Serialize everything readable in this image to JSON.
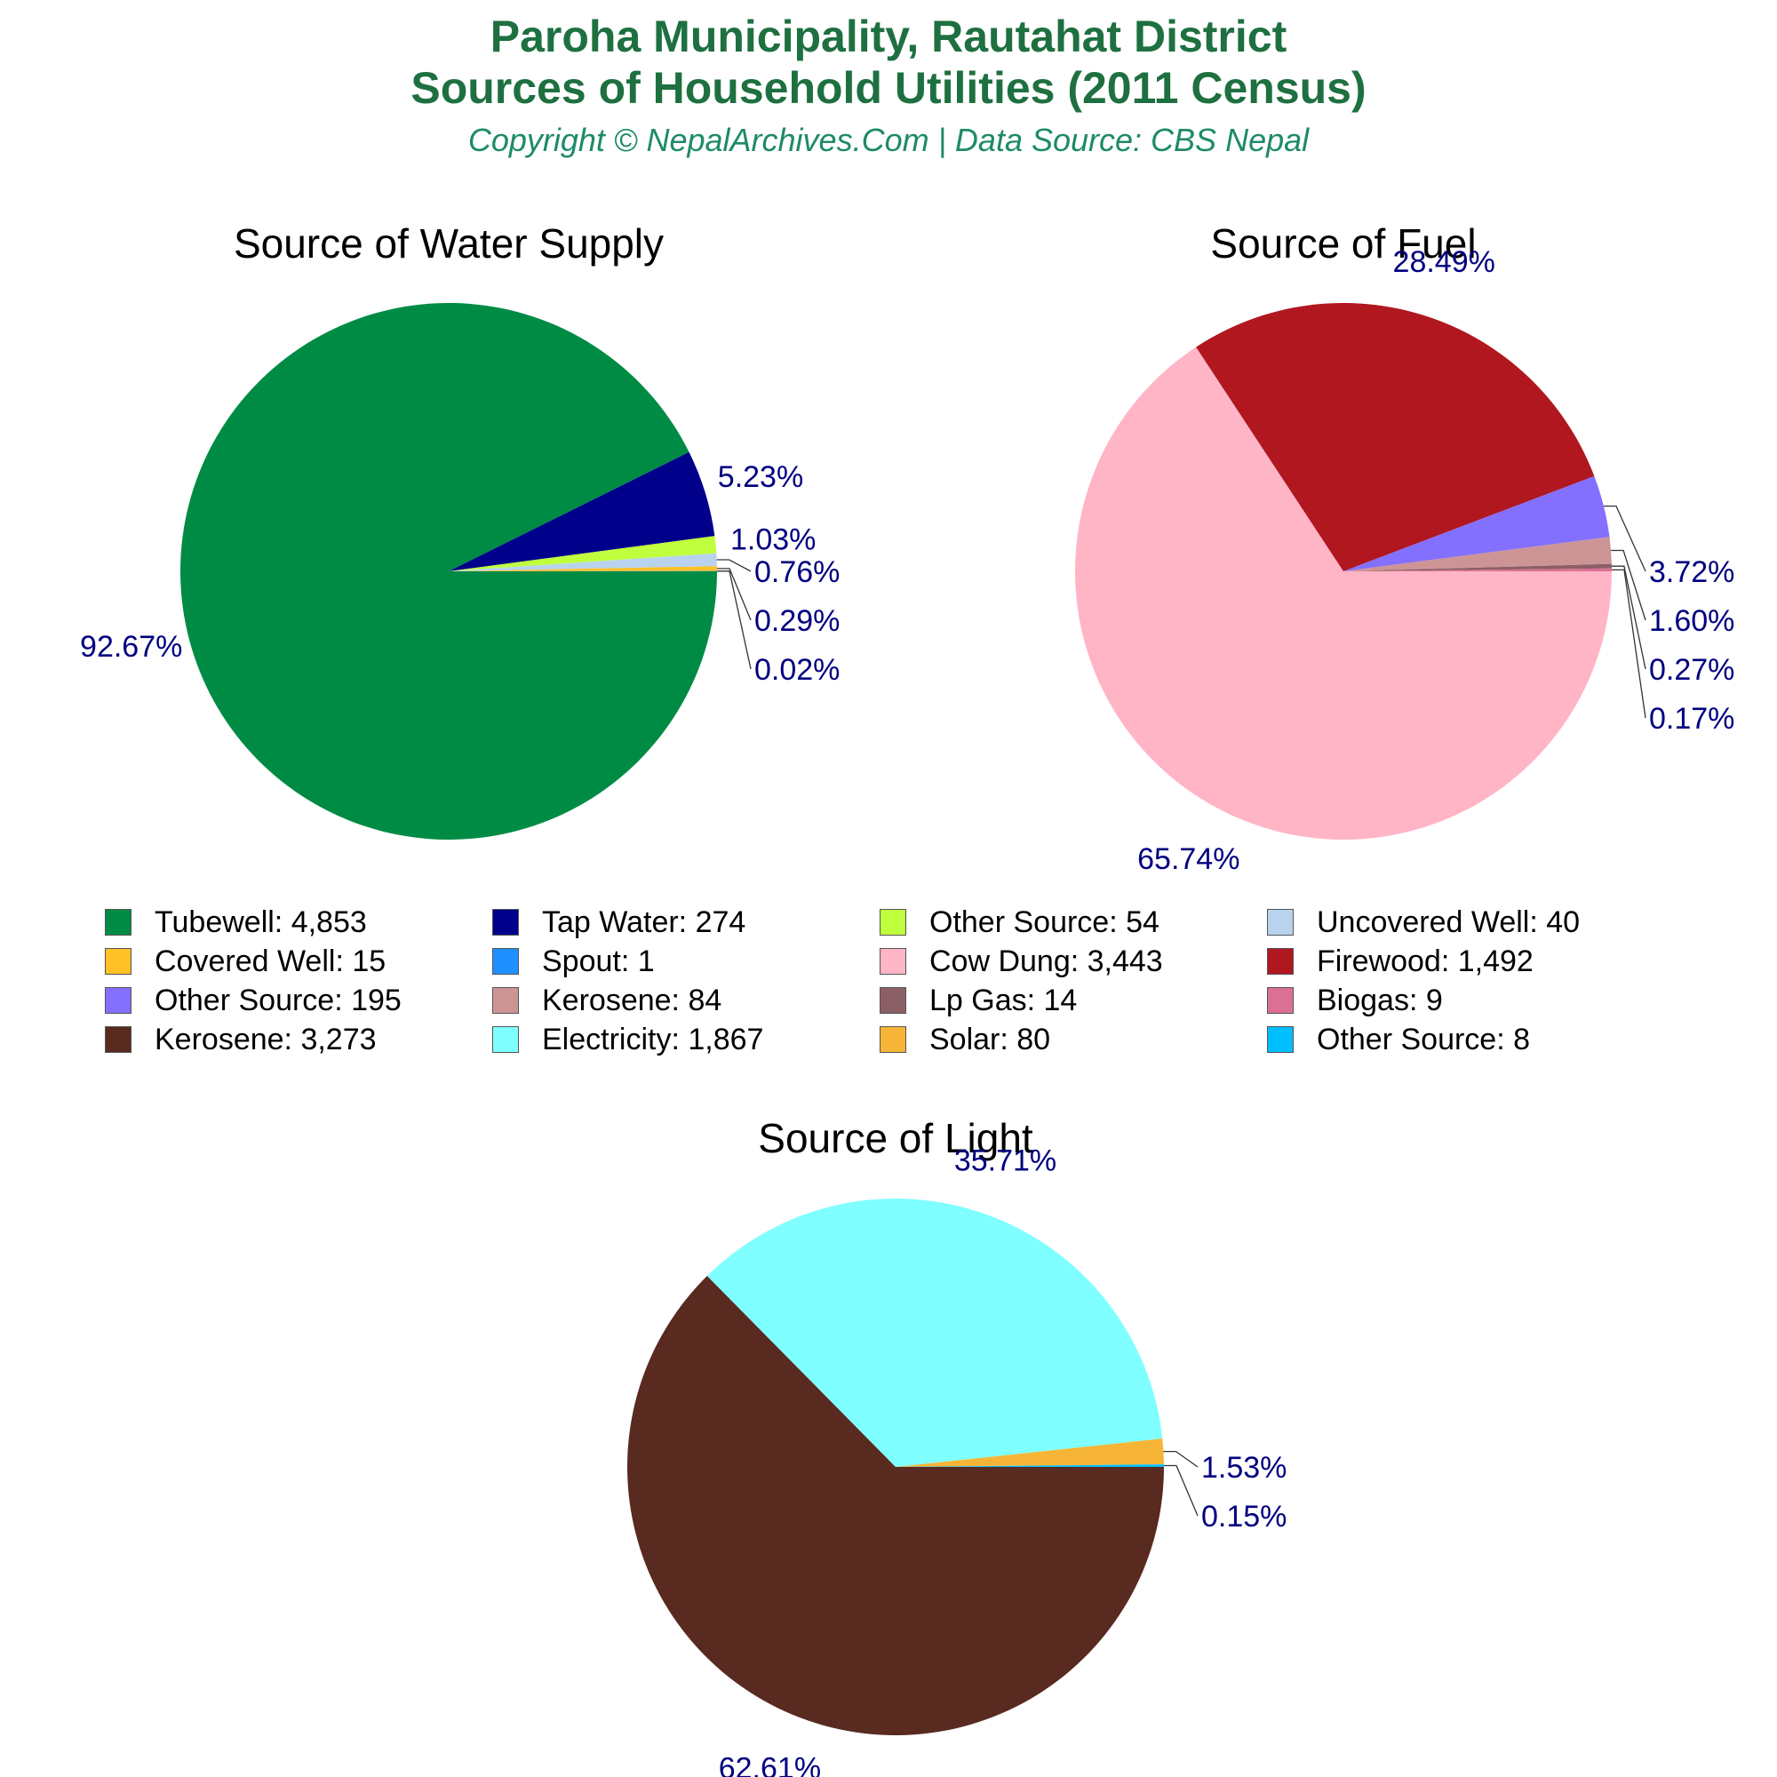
{
  "header": {
    "title_line1": "Paroha Municipality, Rautahat District",
    "title_line2": "Sources of Household Utilities (2011 Census)",
    "subtitle": "Copyright © NepalArchives.Com | Data Source: CBS Nepal"
  },
  "colors": {
    "title": "#1e7040",
    "subtitle": "#1e8a6a",
    "pct_label": "#000080"
  },
  "chart_data": [
    {
      "type": "pie",
      "title": "Source of Water Supply",
      "slices": [
        {
          "label": "Tubewell",
          "value": 4853,
          "pct": "92.67%",
          "color": "#008b45"
        },
        {
          "label": "Tap Water",
          "value": 274,
          "pct": "5.23%",
          "color": "#00008b"
        },
        {
          "label": "Other Source",
          "value": 54,
          "pct": "1.03%",
          "color": "#c0ff3e"
        },
        {
          "label": "Uncovered Well",
          "value": 40,
          "pct": "0.76%",
          "color": "#b9d3ee"
        },
        {
          "label": "Covered Well",
          "value": 15,
          "pct": "0.29%",
          "color": "#ffc125"
        },
        {
          "label": "Spout",
          "value": 1,
          "pct": "0.02%",
          "color": "#1e90ff"
        }
      ]
    },
    {
      "type": "pie",
      "title": "Source of Fuel",
      "slices": [
        {
          "label": "Cow Dung",
          "value": 3443,
          "pct": "65.74%",
          "color": "#ffb5c5"
        },
        {
          "label": "Firewood",
          "value": 1492,
          "pct": "28.49%",
          "color": "#b0171f"
        },
        {
          "label": "Other Source",
          "value": 195,
          "pct": "3.72%",
          "color": "#8470ff"
        },
        {
          "label": "Kerosene",
          "value": 84,
          "pct": "1.60%",
          "color": "#cd9496"
        },
        {
          "label": "Lp Gas",
          "value": 14,
          "pct": "0.27%",
          "color": "#8b5f65"
        },
        {
          "label": "Biogas",
          "value": 9,
          "pct": "0.17%",
          "color": "#db7093"
        }
      ]
    },
    {
      "type": "pie",
      "title": "Source of Light",
      "slices": [
        {
          "label": "Kerosene",
          "value": 3273,
          "pct": "62.61%",
          "color": "#582a20"
        },
        {
          "label": "Electricity",
          "value": 1867,
          "pct": "35.71%",
          "color": "#7fffff"
        },
        {
          "label": "Solar",
          "value": 80,
          "pct": "1.53%",
          "color": "#f7b538"
        },
        {
          "label": "Other Source",
          "value": 8,
          "pct": "0.15%",
          "color": "#00bfff"
        }
      ]
    }
  ],
  "legend": [
    {
      "text": "Tubewell: 4,853",
      "color": "#008b45"
    },
    {
      "text": "Tap Water: 274",
      "color": "#00008b"
    },
    {
      "text": "Other Source: 54",
      "color": "#c0ff3e"
    },
    {
      "text": "Uncovered Well: 40",
      "color": "#b9d3ee"
    },
    {
      "text": "Covered Well: 15",
      "color": "#ffc125"
    },
    {
      "text": "Spout: 1",
      "color": "#1e90ff"
    },
    {
      "text": "Cow Dung: 3,443",
      "color": "#ffb5c5"
    },
    {
      "text": "Firewood: 1,492",
      "color": "#b0171f"
    },
    {
      "text": "Other Source: 195",
      "color": "#8470ff"
    },
    {
      "text": "Kerosene: 84",
      "color": "#cd9496"
    },
    {
      "text": "Lp Gas: 14",
      "color": "#8b5f65"
    },
    {
      "text": "Biogas: 9",
      "color": "#db7093"
    },
    {
      "text": "Kerosene: 3,273",
      "color": "#582a20"
    },
    {
      "text": "Electricity: 1,867",
      "color": "#7fffff"
    },
    {
      "text": "Solar: 80",
      "color": "#f7b538"
    },
    {
      "text": "Other Source: 8",
      "color": "#00bfff"
    }
  ]
}
